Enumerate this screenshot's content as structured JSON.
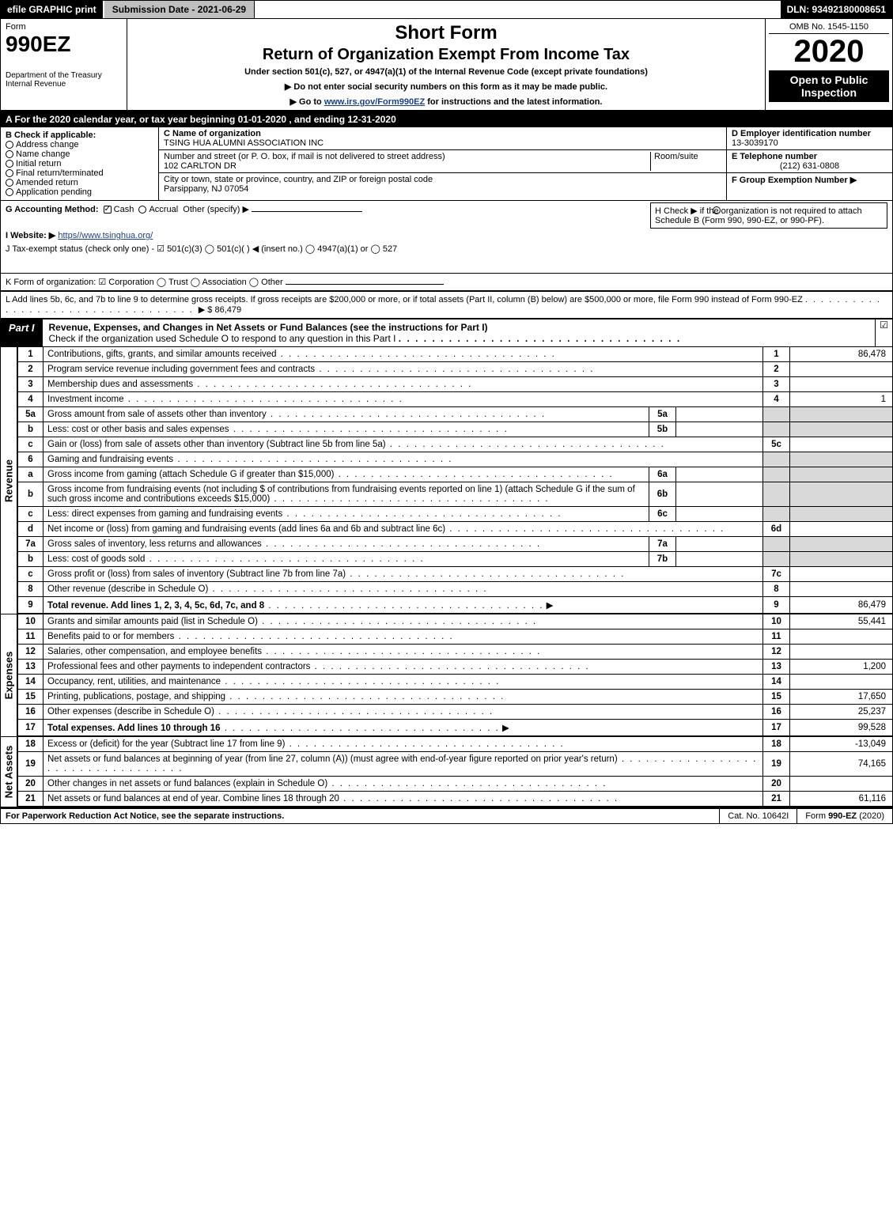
{
  "topbar": {
    "efile": "efile GRAPHIC print",
    "submission_label": "Submission Date - 2021-06-29",
    "dln": "DLN: 93492180008651"
  },
  "header": {
    "form_word": "Form",
    "form_no": "990EZ",
    "dept": "Department of the Treasury",
    "irs": "Internal Revenue",
    "short_form": "Short Form",
    "return_title": "Return of Organization Exempt From Income Tax",
    "under_section": "Under section 501(c), 527, or 4947(a)(1) of the Internal Revenue Code (except private foundations)",
    "do_not_enter": "▶ Do not enter social security numbers on this form as it may be made public.",
    "go_to_pre": "▶ Go to ",
    "go_to_link": "www.irs.gov/Form990EZ",
    "go_to_post": " for instructions and the latest information.",
    "omb": "OMB No. 1545-1150",
    "year": "2020",
    "open_to": "Open to Public Inspection"
  },
  "line_a": "A For the 2020 calendar year, or tax year beginning 01-01-2020 , and ending 12-31-2020",
  "box_b": {
    "label": "B  Check if applicable:",
    "items": [
      "Address change",
      "Name change",
      "Initial return",
      "Final return/terminated",
      "Amended return",
      "Application pending"
    ]
  },
  "box_c": {
    "label_c": "C Name of organization",
    "org_name": "TSING HUA ALUMNI ASSOCIATION INC",
    "addr_label": "Number and street (or P. O. box, if mail is not delivered to street address)",
    "room_label": "Room/suite",
    "street": "102 CARLTON DR",
    "city_label": "City or town, state or province, country, and ZIP or foreign postal code",
    "city": "Parsippany, NJ  07054"
  },
  "box_d": {
    "label": "D Employer identification number",
    "ein": "13-3039170",
    "tel_label": "E Telephone number",
    "tel": "(212) 631-0808",
    "grp_label": "F Group Exemption Number   ▶"
  },
  "row_g": {
    "g": "G Accounting Method:",
    "cash": "Cash",
    "accrual": "Accrual",
    "other": "Other (specify) ▶",
    "h_text": "H  Check ▶     if the organization is not required to attach Schedule B (Form 990, 990-EZ, or 990-PF)."
  },
  "row_i": {
    "label": "I Website: ▶",
    "url": "https//www.tsinghua.org/"
  },
  "row_j": "J Tax-exempt status (check only one) -  ☑ 501(c)(3)   ◯ 501(c)(  ) ◀ (insert no.)   ◯ 4947(a)(1) or   ◯ 527",
  "row_k": "K Form of organization:   ☑ Corporation   ◯ Trust   ◯ Association   ◯ Other",
  "row_l": {
    "text": "L Add lines 5b, 6c, and 7b to line 9 to determine gross receipts. If gross receipts are $200,000 or more, or if total assets (Part II, column (B) below) are $500,000 or more, file Form 990 instead of Form 990-EZ",
    "amount_lead": "▶ $",
    "amount": "86,479"
  },
  "part1": {
    "tag": "Part I",
    "title": "Revenue, Expenses, and Changes in Net Assets or Fund Balances (see the instructions for Part I)",
    "sub": "Check if the organization used Schedule O to respond to any question in this Part I",
    "checked": "☑"
  },
  "sections": {
    "revenue_label": "Revenue",
    "expenses_label": "Expenses",
    "netassets_label": "Net Assets"
  },
  "revenue_lines": [
    {
      "no": "1",
      "desc": "Contributions, gifts, grants, and similar amounts received",
      "rno": "1",
      "rval": "86,478"
    },
    {
      "no": "2",
      "desc": "Program service revenue including government fees and contracts",
      "rno": "2",
      "rval": ""
    },
    {
      "no": "3",
      "desc": "Membership dues and assessments",
      "rno": "3",
      "rval": ""
    },
    {
      "no": "4",
      "desc": "Investment income",
      "rno": "4",
      "rval": "1"
    },
    {
      "no": "5a",
      "desc": "Gross amount from sale of assets other than inventory",
      "subno": "5a",
      "subval": "",
      "grey_r": true
    },
    {
      "no": "b",
      "desc": "Less: cost or other basis and sales expenses",
      "subno": "5b",
      "subval": "",
      "grey_r": true
    },
    {
      "no": "c",
      "desc": "Gain or (loss) from sale of assets other than inventory (Subtract line 5b from line 5a)",
      "rno": "5c",
      "rval": ""
    },
    {
      "no": "6",
      "desc": "Gaming and fundraising events",
      "grey_r": true,
      "no_rno": true
    },
    {
      "no": "a",
      "desc": "Gross income from gaming (attach Schedule G if greater than $15,000)",
      "subno": "6a",
      "subval": "",
      "grey_r": true
    },
    {
      "no": "b",
      "desc": "Gross income from fundraising events (not including $                     of contributions from fundraising events reported on line 1) (attach Schedule G if the sum of such gross income and contributions exceeds $15,000)",
      "subno": "6b",
      "subval": "",
      "grey_r": true
    },
    {
      "no": "c",
      "desc": "Less: direct expenses from gaming and fundraising events",
      "subno": "6c",
      "subval": "",
      "grey_r": true
    },
    {
      "no": "d",
      "desc": "Net income or (loss) from gaming and fundraising events (add lines 6a and 6b and subtract line 6c)",
      "rno": "6d",
      "rval": ""
    },
    {
      "no": "7a",
      "desc": "Gross sales of inventory, less returns and allowances",
      "subno": "7a",
      "subval": "",
      "grey_r": true
    },
    {
      "no": "b",
      "desc": "Less: cost of goods sold",
      "subno": "7b",
      "subval": "",
      "grey_r": true
    },
    {
      "no": "c",
      "desc": "Gross profit or (loss) from sales of inventory (Subtract line 7b from line 7a)",
      "rno": "7c",
      "rval": ""
    },
    {
      "no": "8",
      "desc": "Other revenue (describe in Schedule O)",
      "rno": "8",
      "rval": ""
    },
    {
      "no": "9",
      "desc": "Total revenue. Add lines 1, 2, 3, 4, 5c, 6d, 7c, and 8",
      "rno": "9",
      "rval": "86,479",
      "bold": true,
      "arrow": true,
      "section_end": true
    }
  ],
  "expense_lines": [
    {
      "no": "10",
      "desc": "Grants and similar amounts paid (list in Schedule O)",
      "rno": "10",
      "rval": "55,441"
    },
    {
      "no": "11",
      "desc": "Benefits paid to or for members",
      "rno": "11",
      "rval": ""
    },
    {
      "no": "12",
      "desc": "Salaries, other compensation, and employee benefits",
      "rno": "12",
      "rval": ""
    },
    {
      "no": "13",
      "desc": "Professional fees and other payments to independent contractors",
      "rno": "13",
      "rval": "1,200"
    },
    {
      "no": "14",
      "desc": "Occupancy, rent, utilities, and maintenance",
      "rno": "14",
      "rval": ""
    },
    {
      "no": "15",
      "desc": "Printing, publications, postage, and shipping",
      "rno": "15",
      "rval": "17,650"
    },
    {
      "no": "16",
      "desc": "Other expenses (describe in Schedule O)",
      "rno": "16",
      "rval": "25,237"
    },
    {
      "no": "17",
      "desc": "Total expenses. Add lines 10 through 16",
      "rno": "17",
      "rval": "99,528",
      "bold": true,
      "arrow": true,
      "section_end": true
    }
  ],
  "netasset_lines": [
    {
      "no": "18",
      "desc": "Excess or (deficit) for the year (Subtract line 17 from line 9)",
      "rno": "18",
      "rval": "-13,049"
    },
    {
      "no": "19",
      "desc": "Net assets or fund balances at beginning of year (from line 27, column (A)) (must agree with end-of-year figure reported on prior year's return)",
      "rno": "19",
      "rval": "74,165"
    },
    {
      "no": "20",
      "desc": "Other changes in net assets or fund balances (explain in Schedule O)",
      "rno": "20",
      "rval": ""
    },
    {
      "no": "21",
      "desc": "Net assets or fund balances at end of year. Combine lines 18 through 20",
      "rno": "21",
      "rval": "61,116",
      "section_end": true
    }
  ],
  "footer": {
    "left": "For Paperwork Reduction Act Notice, see the separate instructions.",
    "center": "Cat. No. 10642I",
    "right_pre": "Form ",
    "right_form": "990-EZ",
    "right_post": " (2020)"
  },
  "colors": {
    "black": "#000000",
    "grey": "#d9d9d9",
    "barGrey": "#bfbfbf",
    "link": "#1a3f8b"
  }
}
